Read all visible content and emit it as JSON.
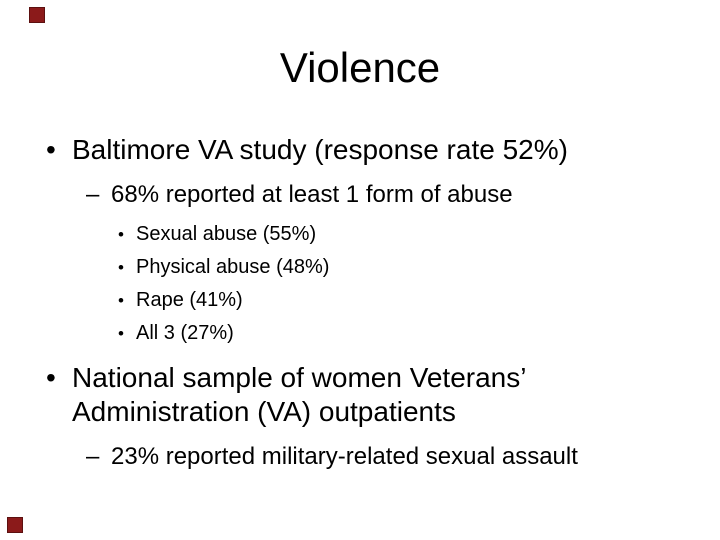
{
  "colors": {
    "accent": "#8B1A1A",
    "text": "#000000",
    "background": "#FFFFFF"
  },
  "slide": {
    "title": "Violence",
    "markers": {
      "level1": "•",
      "level2": "–",
      "level3": "•"
    },
    "bullet1": {
      "text": "Baltimore VA study (response rate 52%)",
      "sub": "68% reported at least 1 form of abuse",
      "items": [
        "Sexual abuse (55%)",
        "Physical abuse (48%)",
        "Rape (41%)",
        "All 3 (27%)"
      ]
    },
    "bullet2": {
      "text": "National sample of women Veterans’ Administration (VA) outpatients",
      "sub": "23% reported military-related sexual assault"
    }
  }
}
